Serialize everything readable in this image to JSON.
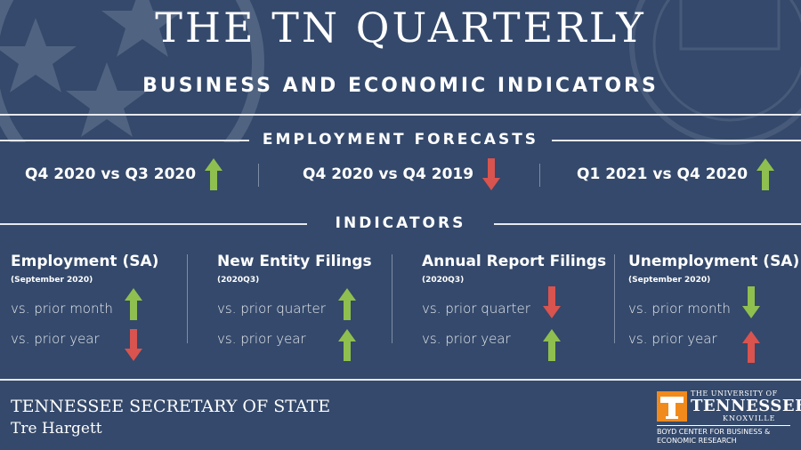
{
  "header": {
    "title": "THE TN QUARTERLY",
    "subtitle": "BUSINESS AND ECONOMIC INDICATORS"
  },
  "forecasts": {
    "heading": "EMPLOYMENT FORECASTS",
    "items": [
      {
        "label": "Q4 2020 vs Q3 2020",
        "direction": "up",
        "color": "#8fbf4f"
      },
      {
        "label": "Q4 2020 vs Q4 2019",
        "direction": "down",
        "color": "#d9534f"
      },
      {
        "label": "Q1 2021 vs Q4 2020",
        "direction": "up",
        "color": "#8fbf4f"
      }
    ]
  },
  "indicators": {
    "heading": "INDICATORS",
    "items": [
      {
        "name": "Employment (SA)",
        "period": "(September 2020)",
        "rows": [
          {
            "label": "vs. prior month",
            "direction": "up",
            "color": "#8fbf4f"
          },
          {
            "label": "vs. prior year",
            "direction": "down",
            "color": "#d9534f"
          }
        ]
      },
      {
        "name": "New Entity Filings",
        "period": "(2020Q3)",
        "rows": [
          {
            "label": "vs. prior quarter",
            "direction": "up",
            "color": "#8fbf4f"
          },
          {
            "label": "vs. prior year",
            "direction": "up",
            "color": "#8fbf4f"
          }
        ]
      },
      {
        "name": "Annual Report Filings",
        "period": "(2020Q3)",
        "rows": [
          {
            "label": "vs. prior quarter",
            "direction": "down",
            "color": "#d9534f"
          },
          {
            "label": "vs. prior year",
            "direction": "up",
            "color": "#8fbf4f"
          }
        ]
      },
      {
        "name": "Unemployment (SA)",
        "period": "(September 2020)",
        "rows": [
          {
            "label": "vs. prior month",
            "direction": "down",
            "color": "#8fbf4f"
          },
          {
            "label": "vs. prior year",
            "direction": "up",
            "color": "#d9534f"
          }
        ]
      }
    ]
  },
  "footer": {
    "org": "TENNESSEE SECRETARY OF STATE",
    "person": "Tre Hargett",
    "utk_line1": "THE UNIVERSITY OF",
    "utk_line2": "TENNESSEE",
    "utk_line3": "KNOXVILLE",
    "utk_logo_letter": "T",
    "boyd_line1": "BOYD CENTER FOR BUSINESS &",
    "boyd_line2": "ECONOMIC RESEARCH"
  },
  "colors": {
    "background": "#34496b",
    "up_green": "#8fbf4f",
    "down_red": "#d9534f",
    "utk_orange": "#f08a1c"
  }
}
